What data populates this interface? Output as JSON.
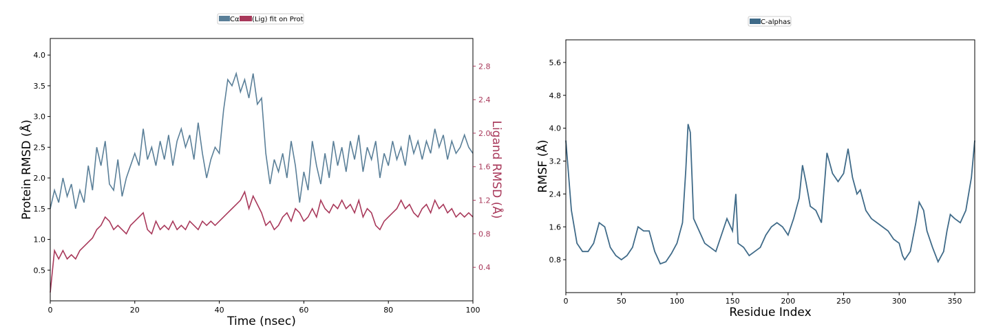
{
  "chart_data": [
    {
      "type": "line",
      "title": "",
      "xlabel": "Time (nsec)",
      "ylabel": "Protein RMSD (Å)",
      "y2label": "Ligand RMSD (Å)",
      "xlim": [
        0,
        100
      ],
      "ylim": [
        0,
        4.27
      ],
      "y2lim": [
        0,
        3.13
      ],
      "xticks": [
        0,
        20,
        40,
        60,
        80,
        100
      ],
      "yticks": [
        0.5,
        1.0,
        1.5,
        2.0,
        2.5,
        3.0,
        3.5,
        4.0
      ],
      "y2ticks": [
        0.4,
        0.8,
        1.2,
        1.6,
        2.0,
        2.4,
        2.8
      ],
      "legend": {
        "placement": "top-center",
        "entries": [
          "Cα",
          "(Lig) fit on Prot"
        ]
      },
      "series": [
        {
          "name": "Cα",
          "axis": "left",
          "color": "#5a7f98",
          "x_step": 1,
          "values": [
            1.5,
            1.8,
            1.6,
            2.0,
            1.7,
            1.9,
            1.5,
            1.8,
            1.6,
            2.2,
            1.8,
            2.5,
            2.2,
            2.6,
            1.9,
            1.8,
            2.3,
            1.7,
            2.0,
            2.2,
            2.4,
            2.2,
            2.8,
            2.3,
            2.5,
            2.2,
            2.6,
            2.3,
            2.7,
            2.2,
            2.6,
            2.8,
            2.5,
            2.7,
            2.3,
            2.9,
            2.4,
            2.0,
            2.3,
            2.5,
            2.4,
            3.1,
            3.6,
            3.5,
            3.7,
            3.4,
            3.6,
            3.3,
            3.7,
            3.2,
            3.3,
            2.4,
            1.9,
            2.3,
            2.1,
            2.4,
            2.0,
            2.6,
            2.2,
            1.6,
            2.1,
            1.8,
            2.6,
            2.2,
            1.9,
            2.4,
            2.0,
            2.6,
            2.2,
            2.5,
            2.1,
            2.6,
            2.3,
            2.7,
            2.1,
            2.5,
            2.3,
            2.6,
            2.0,
            2.4,
            2.2,
            2.6,
            2.3,
            2.5,
            2.2,
            2.7,
            2.4,
            2.6,
            2.3,
            2.6,
            2.4,
            2.8,
            2.5,
            2.7,
            2.3,
            2.6,
            2.4,
            2.5,
            2.7,
            2.5,
            2.4
          ]
        },
        {
          "name": "(Lig) fit on Prot",
          "axis": "right",
          "color": "#a8385a",
          "x_step": 1,
          "values": [
            0.1,
            0.6,
            0.5,
            0.6,
            0.5,
            0.55,
            0.5,
            0.6,
            0.65,
            0.7,
            0.75,
            0.85,
            0.9,
            1.0,
            0.95,
            0.85,
            0.9,
            0.85,
            0.8,
            0.9,
            0.95,
            1.0,
            1.05,
            0.85,
            0.8,
            0.95,
            0.85,
            0.9,
            0.85,
            0.95,
            0.85,
            0.9,
            0.85,
            0.95,
            0.9,
            0.85,
            0.95,
            0.9,
            0.95,
            0.9,
            0.95,
            1.0,
            1.05,
            1.1,
            1.15,
            1.2,
            1.3,
            1.1,
            1.25,
            1.15,
            1.05,
            0.9,
            0.95,
            0.85,
            0.9,
            1.0,
            1.05,
            0.95,
            1.1,
            1.05,
            0.95,
            1.0,
            1.1,
            1.0,
            1.2,
            1.1,
            1.05,
            1.15,
            1.1,
            1.2,
            1.1,
            1.15,
            1.05,
            1.2,
            1.0,
            1.1,
            1.05,
            0.9,
            0.85,
            0.95,
            1.0,
            1.05,
            1.1,
            1.2,
            1.1,
            1.15,
            1.05,
            1.0,
            1.1,
            1.15,
            1.05,
            1.2,
            1.1,
            1.15,
            1.05,
            1.1,
            1.0,
            1.05,
            1.0,
            1.05,
            1.0
          ]
        }
      ]
    },
    {
      "type": "line",
      "title": "",
      "xlabel": "Residue Index",
      "ylabel": "RMSF (Å)",
      "xlim": [
        0,
        368
      ],
      "ylim": [
        0,
        6.15
      ],
      "xticks": [
        0,
        50,
        100,
        150,
        200,
        250,
        300,
        350
      ],
      "yticks": [
        0.8,
        1.6,
        2.4,
        3.2,
        4.0,
        4.8,
        5.6
      ],
      "legend": {
        "placement": "top-center",
        "entries": [
          "C-alphas"
        ]
      },
      "series": [
        {
          "name": "C-alphas",
          "color": "#3f6a88",
          "x": [
            0,
            5,
            10,
            15,
            20,
            25,
            30,
            35,
            40,
            45,
            50,
            55,
            60,
            65,
            70,
            75,
            80,
            85,
            90,
            95,
            100,
            105,
            108,
            110,
            112,
            115,
            120,
            125,
            130,
            135,
            140,
            145,
            150,
            153,
            155,
            160,
            165,
            170,
            175,
            180,
            185,
            190,
            195,
            200,
            205,
            210,
            213,
            216,
            220,
            225,
            230,
            235,
            240,
            245,
            250,
            254,
            258,
            262,
            265,
            270,
            275,
            280,
            285,
            290,
            295,
            300,
            303,
            305,
            310,
            315,
            318,
            322,
            325,
            330,
            335,
            340,
            343,
            346,
            350,
            355,
            360,
            365,
            368
          ],
          "values": [
            3.7,
            2.0,
            1.2,
            1.0,
            1.0,
            1.2,
            1.7,
            1.6,
            1.1,
            0.9,
            0.8,
            0.9,
            1.1,
            1.6,
            1.5,
            1.5,
            1.0,
            0.7,
            0.75,
            0.95,
            1.2,
            1.7,
            3.0,
            4.1,
            3.9,
            1.8,
            1.5,
            1.2,
            1.1,
            1.0,
            1.4,
            1.8,
            1.5,
            2.4,
            1.2,
            1.1,
            0.9,
            1.0,
            1.1,
            1.4,
            1.6,
            1.7,
            1.6,
            1.4,
            1.8,
            2.3,
            3.1,
            2.7,
            2.1,
            2.0,
            1.7,
            3.4,
            2.9,
            2.7,
            2.9,
            3.5,
            2.8,
            2.4,
            2.5,
            2.0,
            1.8,
            1.7,
            1.6,
            1.5,
            1.3,
            1.2,
            0.9,
            0.8,
            1.0,
            1.7,
            2.2,
            2.0,
            1.5,
            1.1,
            0.75,
            1.0,
            1.5,
            1.9,
            1.8,
            1.7,
            2.0,
            2.8,
            3.7
          ]
        }
      ]
    }
  ]
}
